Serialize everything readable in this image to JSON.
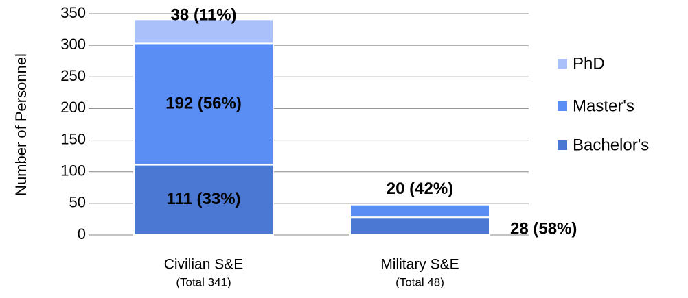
{
  "chart_data": {
    "type": "stacked_bar",
    "y_label": "Number of Personnel",
    "categories": [
      "Civilian S&E",
      "Military S&E"
    ],
    "category_subtitles": [
      "(Total 341)",
      "(Total 48)"
    ],
    "series": [
      {
        "name": "Bachelor's",
        "color": "#4a78d3",
        "values": [
          111,
          28
        ],
        "value_labels": [
          "111 (33%)",
          "28 (58%)"
        ]
      },
      {
        "name": "Master's",
        "color": "#5b8ef4",
        "values": [
          192,
          20
        ],
        "value_labels": [
          "192 (56%)",
          "20 (42%)"
        ]
      },
      {
        "name": "PhD",
        "color": "#a9c0fa",
        "values": [
          38,
          null
        ],
        "value_labels": [
          "38 (11%)",
          null
        ]
      }
    ],
    "ylim": [
      0,
      350
    ],
    "yticks": [
      0,
      50,
      100,
      150,
      200,
      250,
      300,
      350
    ],
    "grid": true,
    "legend": "right"
  }
}
